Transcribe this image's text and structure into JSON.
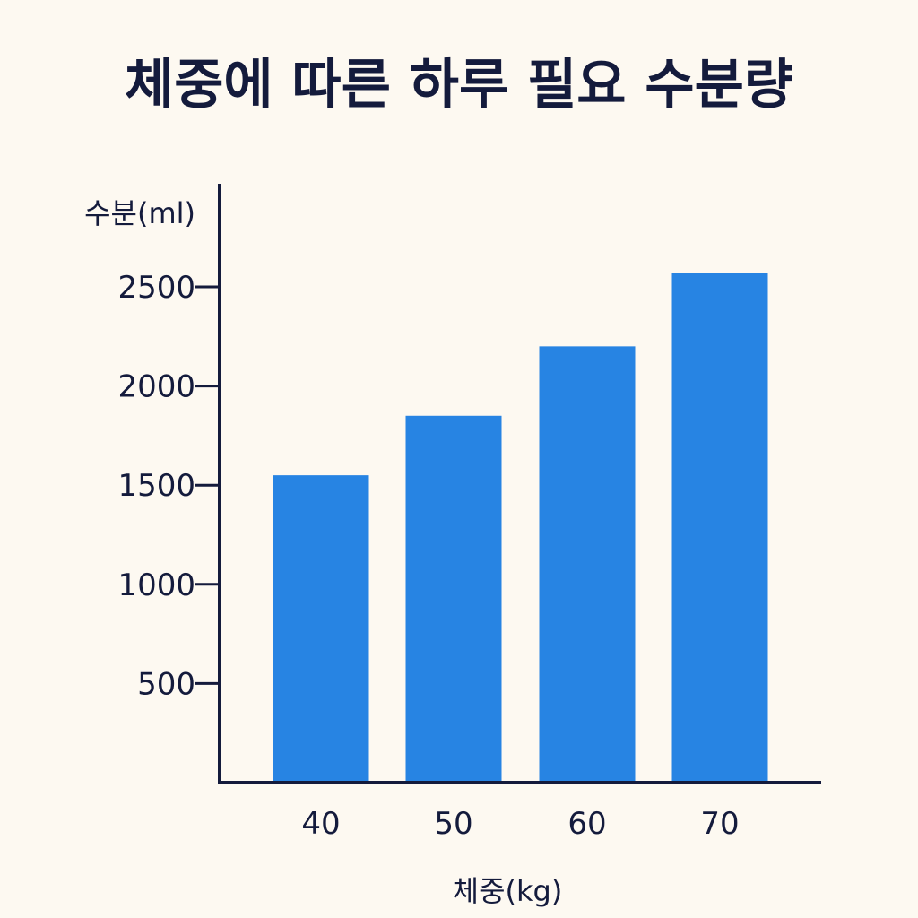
{
  "title": "체중에 따른 하루 필요 수분량",
  "colors": {
    "background": "#fdf9f1",
    "bar": "#2784e3",
    "axis": "#141b3c",
    "text": "#141b3c"
  },
  "chart_data": {
    "type": "bar",
    "title": "체중에 따른 하루 필요 수분량",
    "xlabel": "체중(kg)",
    "ylabel": "수분(ml)",
    "categories": [
      "40",
      "50",
      "60",
      "70"
    ],
    "values": [
      1550,
      1850,
      2200,
      2570
    ],
    "yticks": [
      500,
      1000,
      1500,
      2000,
      2500
    ],
    "ylim": [
      0,
      3000
    ],
    "grid": false,
    "legend": "none"
  }
}
